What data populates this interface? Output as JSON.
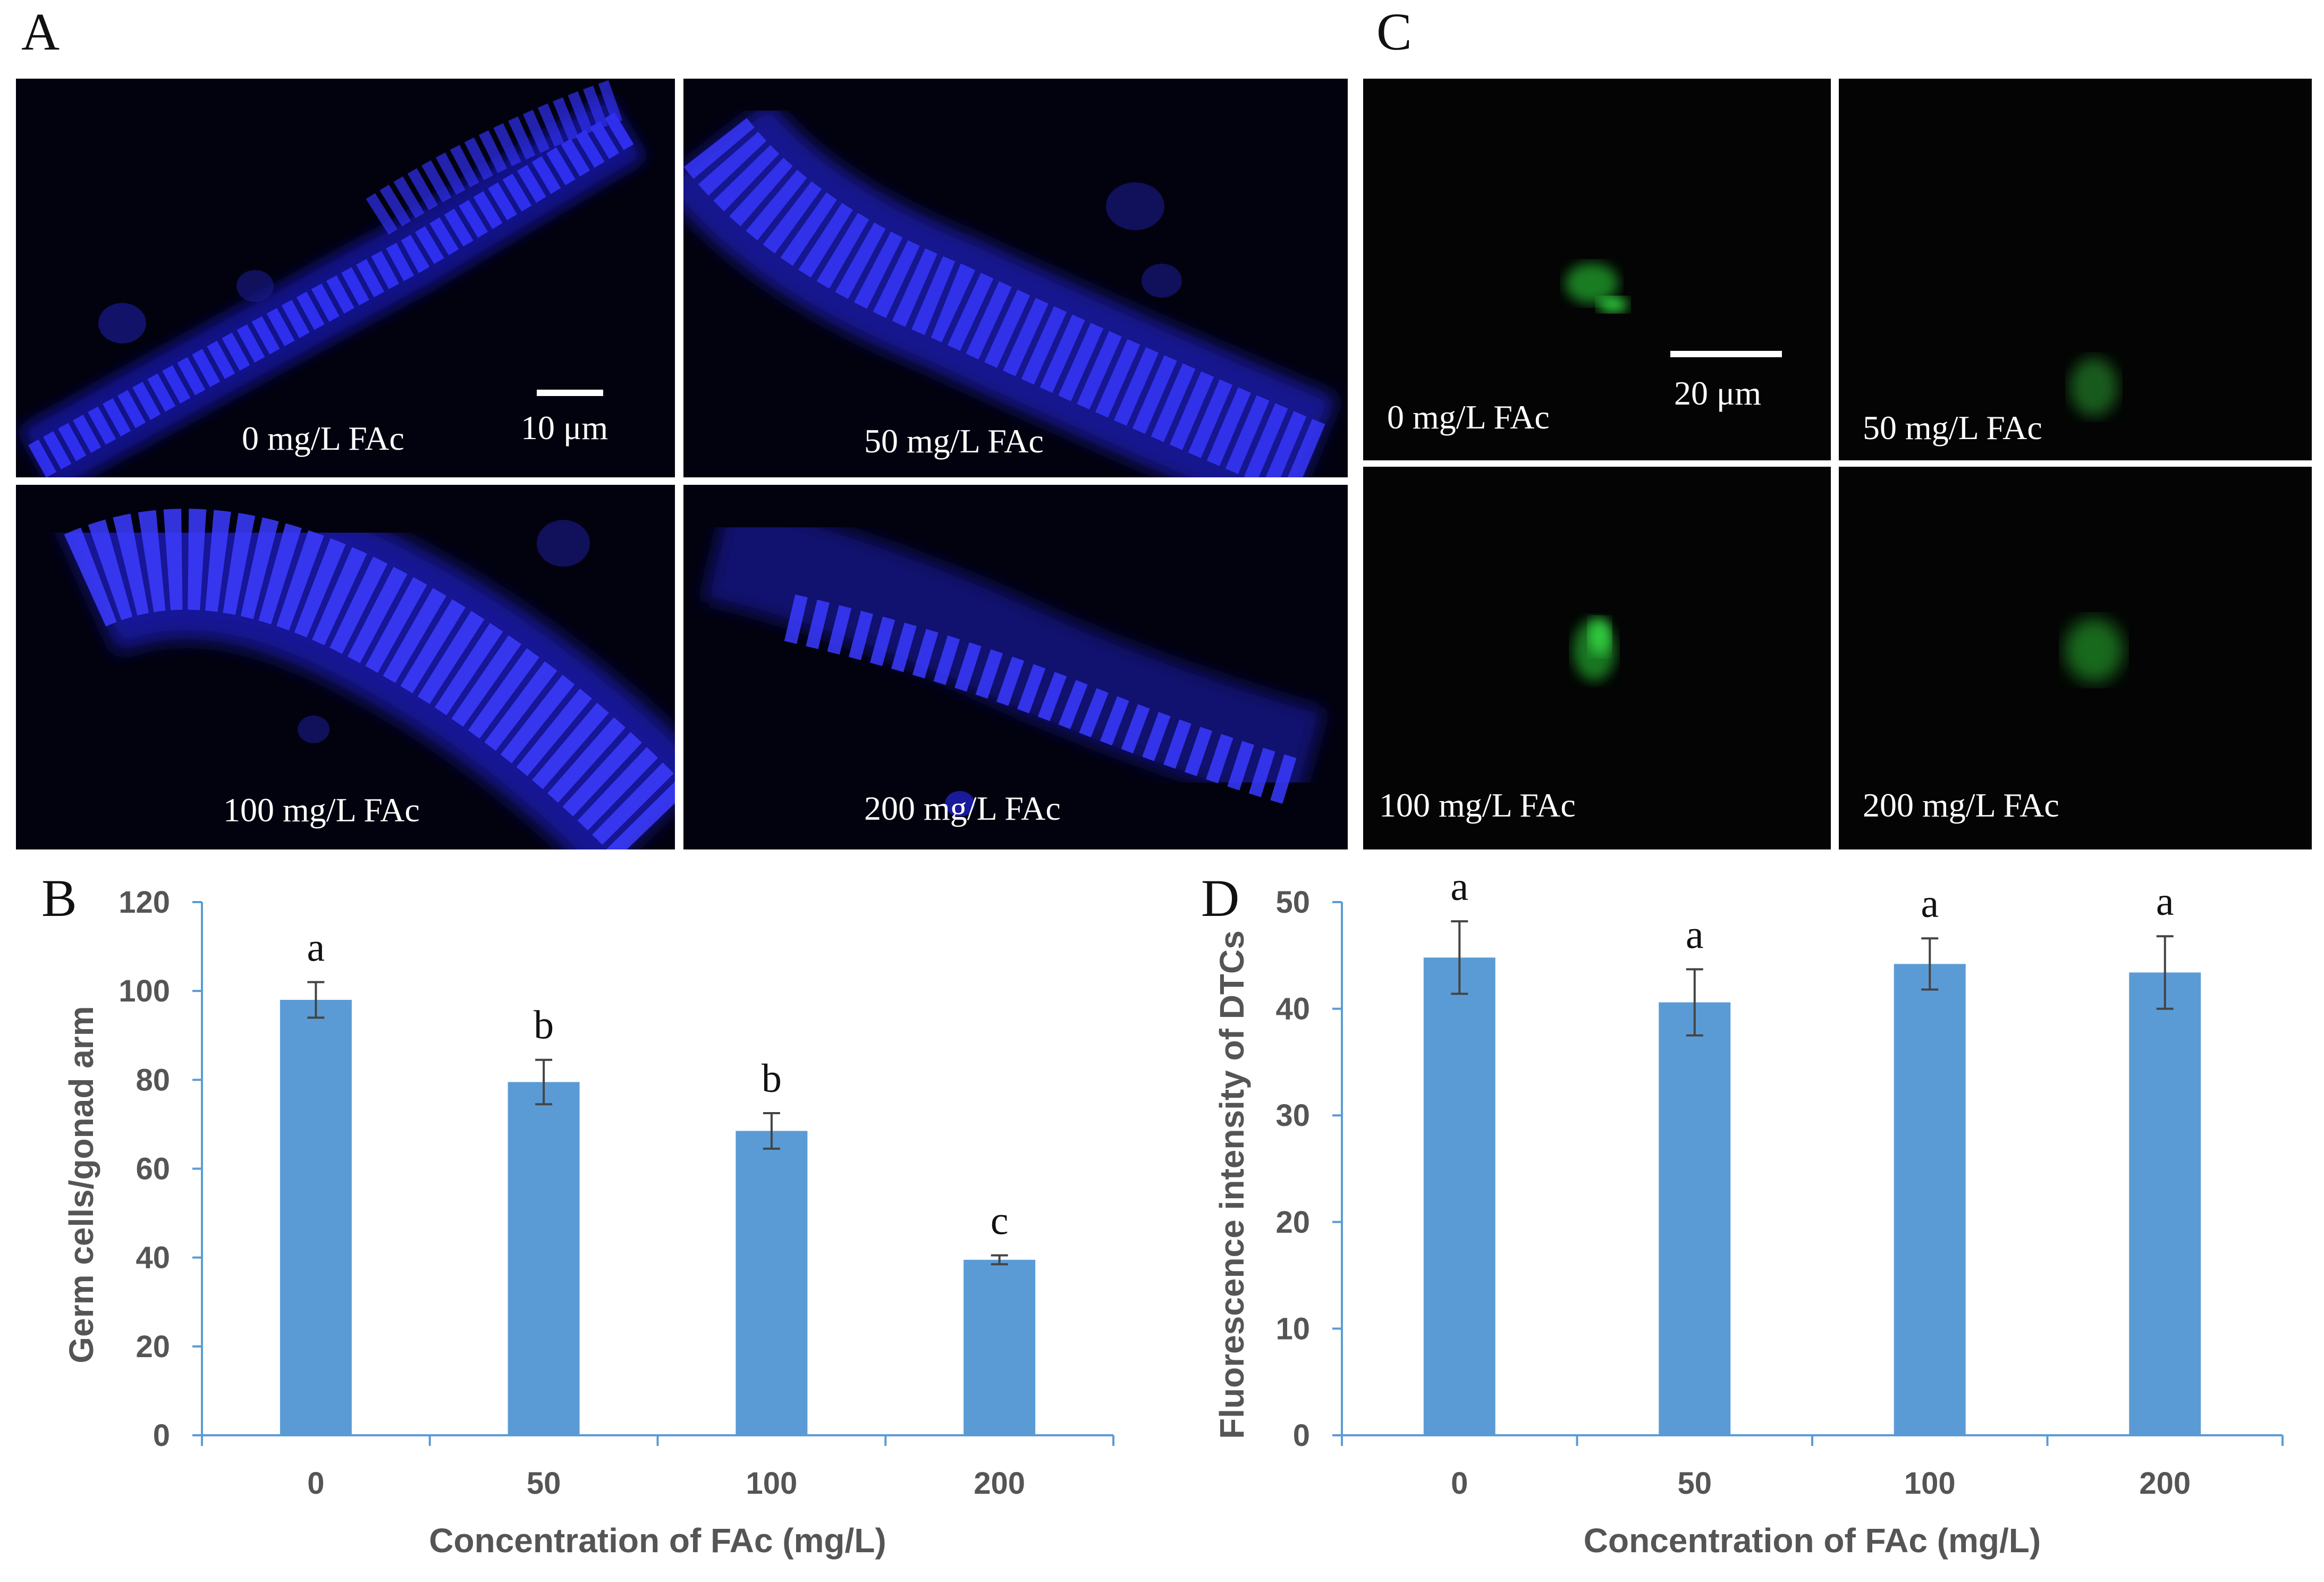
{
  "panel_labels": {
    "a": "A",
    "b": "B",
    "c": "C",
    "d": "D"
  },
  "micrographs_a": [
    {
      "label": "0 mg/L FAc"
    },
    {
      "label": "50 mg/L FAc"
    },
    {
      "label": "100 mg/L FAc"
    },
    {
      "label": "200 mg/L FAc"
    }
  ],
  "micrographs_c": [
    {
      "label": "0 mg/L FAc"
    },
    {
      "label": "50 mg/L FAc"
    },
    {
      "label": "100 mg/L FAc"
    },
    {
      "label": "200 mg/L FAc"
    }
  ],
  "scalebars": {
    "a": "10 μm",
    "c": "20 μm"
  },
  "colors": {
    "bar": "#5b9bd5",
    "axis": "#5b9bd5",
    "nuclei": "#2a2aff",
    "gfp": "#22dd33"
  },
  "chart_data": [
    {
      "type": "bar",
      "panel": "B",
      "categories": [
        "0",
        "50",
        "100",
        "200"
      ],
      "values": [
        98,
        79.5,
        68.5,
        39.5
      ],
      "errors": [
        4,
        5,
        4,
        1
      ],
      "significance": [
        "a",
        "b",
        "b",
        "c"
      ],
      "ylim": [
        0,
        120
      ],
      "yticks": [
        "0",
        "20",
        "40",
        "60",
        "80",
        "100",
        "120"
      ],
      "xlabel": "Concentration of FAc (mg/L)",
      "ylabel": "Germ cells/gonad arm",
      "title": ""
    },
    {
      "type": "bar",
      "panel": "D",
      "categories": [
        "0",
        "50",
        "100",
        "200"
      ],
      "values": [
        44.8,
        40.6,
        44.2,
        43.4
      ],
      "errors": [
        3.4,
        3.1,
        2.4,
        3.4
      ],
      "significance": [
        "a",
        "a",
        "a",
        "a"
      ],
      "ylim": [
        0,
        50
      ],
      "yticks": [
        "0",
        "10",
        "20",
        "30",
        "40",
        "50"
      ],
      "xlabel": "Concentration of FAc (mg/L)",
      "ylabel": "Fluorescence intensity of DTCs",
      "title": ""
    }
  ]
}
